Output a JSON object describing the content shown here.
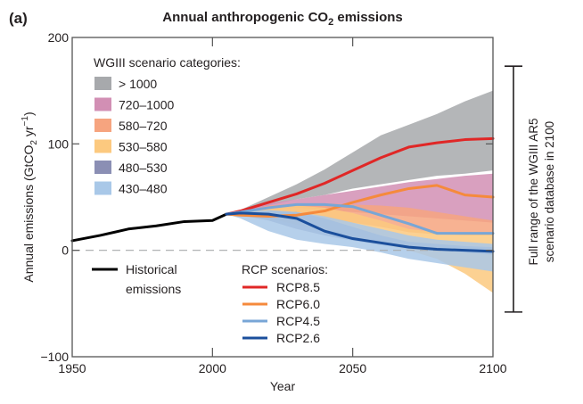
{
  "chart_data": {
    "type": "area",
    "panel_label": "(a)",
    "title_main": "Annual anthropogenic CO",
    "title_sub": "2",
    "title_rest": " emissions",
    "title": "Annual anthropogenic CO2 emissions",
    "xlabel": "Year",
    "ylabel": "Annual emissions (GtCO2 yr-1)",
    "ylabel_parts": [
      "Annual emissions (GtCO",
      "2",
      " yr",
      "−1",
      ")"
    ],
    "xlim": [
      1950,
      2100
    ],
    "ylim": [
      -100,
      200
    ],
    "xticks": [
      1950,
      2000,
      2050,
      2100
    ],
    "xtick_labels": [
      "1950",
      "2000",
      "2050",
      "2100"
    ],
    "yticks": [
      -100,
      0,
      100,
      200
    ],
    "ytick_labels": [
      "−100",
      "0",
      "100",
      "200"
    ],
    "zero_line": "dashed",
    "legend_categories_title": "WGIII scenario categories:",
    "bands": [
      {
        "name": "> 1000",
        "color": "#a7a9ac",
        "x": [
          2005,
          2010,
          2020,
          2030,
          2040,
          2050,
          2060,
          2070,
          2080,
          2090,
          2100
        ],
        "upper": [
          34,
          38,
          50,
          62,
          76,
          92,
          108,
          118,
          128,
          140,
          150
        ],
        "lower": [
          34,
          36,
          42,
          48,
          52,
          58,
          62,
          66,
          70,
          72,
          75
        ]
      },
      {
        "name": "720–1000",
        "color": "#d28fb4",
        "x": [
          2005,
          2010,
          2020,
          2030,
          2040,
          2050,
          2060,
          2070,
          2080,
          2090,
          2100
        ],
        "upper": [
          34,
          37,
          44,
          48,
          52,
          56,
          60,
          64,
          67,
          70,
          72
        ],
        "lower": [
          34,
          35,
          38,
          40,
          38,
          36,
          34,
          32,
          30,
          28,
          26
        ]
      },
      {
        "name": "580–720",
        "color": "#f6a47f",
        "x": [
          2005,
          2010,
          2020,
          2030,
          2040,
          2050,
          2060,
          2070,
          2080,
          2090,
          2100
        ],
        "upper": [
          34,
          36,
          42,
          44,
          44,
          43,
          42,
          40,
          36,
          32,
          28
        ],
        "lower": [
          34,
          34,
          35,
          33,
          30,
          26,
          22,
          17,
          15,
          14,
          14
        ]
      },
      {
        "name": "530–580",
        "color": "#fcc97f",
        "x": [
          2005,
          2010,
          2020,
          2030,
          2040,
          2050,
          2060,
          2070,
          2080,
          2090,
          2100
        ],
        "upper": [
          34,
          36,
          40,
          42,
          40,
          35,
          28,
          20,
          17,
          16,
          16
        ],
        "lower": [
          34,
          33,
          30,
          24,
          18,
          12,
          6,
          0,
          -8,
          -22,
          -40
        ]
      },
      {
        "name": "480–530",
        "color": "#8b8fb4",
        "x": [
          2005,
          2010,
          2020,
          2030,
          2040,
          2050,
          2060,
          2070,
          2080,
          2090,
          2100
        ],
        "upper": [
          34,
          35,
          37,
          36,
          30,
          22,
          14,
          8,
          6,
          4,
          3
        ],
        "lower": [
          34,
          33,
          28,
          20,
          14,
          9,
          5,
          2,
          0,
          -2,
          -4
        ]
      },
      {
        "name": "430–480",
        "color": "#a9c8e8",
        "x": [
          2005,
          2010,
          2020,
          2030,
          2040,
          2050,
          2060,
          2070,
          2080,
          2090,
          2100
        ],
        "upper": [
          34,
          36,
          38,
          36,
          32,
          26,
          20,
          14,
          10,
          8,
          6
        ],
        "lower": [
          34,
          30,
          18,
          10,
          6,
          3,
          -2,
          -8,
          -12,
          -16,
          -20
        ]
      }
    ],
    "series": [
      {
        "name": "Historical emissions",
        "color": "#000000",
        "x": [
          1950,
          1960,
          1970,
          1980,
          1990,
          2000,
          2005
        ],
        "y": [
          9,
          14,
          20,
          23,
          27,
          28,
          34
        ]
      },
      {
        "name": "RCP8.5",
        "color": "#e02726",
        "x": [
          2005,
          2010,
          2020,
          2030,
          2040,
          2050,
          2060,
          2070,
          2080,
          2090,
          2100
        ],
        "y": [
          34,
          37,
          45,
          53,
          63,
          75,
          87,
          97,
          101,
          104,
          105
        ]
      },
      {
        "name": "RCP6.0",
        "color": "#f58a3c",
        "x": [
          2005,
          2010,
          2020,
          2030,
          2040,
          2050,
          2060,
          2070,
          2080,
          2090,
          2100
        ],
        "y": [
          34,
          33,
          32,
          33,
          37,
          45,
          52,
          58,
          61,
          52,
          50
        ]
      },
      {
        "name": "RCP4.5",
        "color": "#78a6d6",
        "x": [
          2005,
          2010,
          2020,
          2030,
          2040,
          2050,
          2060,
          2070,
          2080,
          2090,
          2100
        ],
        "y": [
          34,
          36,
          40,
          43,
          43,
          41,
          33,
          25,
          16,
          16,
          16
        ]
      },
      {
        "name": "RCP2.6",
        "color": "#1b4f9c",
        "x": [
          2005,
          2010,
          2020,
          2030,
          2040,
          2050,
          2060,
          2070,
          2080,
          2090,
          2100
        ],
        "y": [
          34,
          35,
          34,
          30,
          18,
          11,
          7,
          3,
          1,
          0,
          -1
        ]
      }
    ],
    "legend_historical": [
      "Historical",
      "emissions"
    ],
    "legend_rcp_title": "RCP scenarios:",
    "range_bar": {
      "label_lines": [
        "Full range of the WGIII AR5",
        "scenario database in 2100"
      ],
      "min": -58,
      "max": 173
    }
  }
}
